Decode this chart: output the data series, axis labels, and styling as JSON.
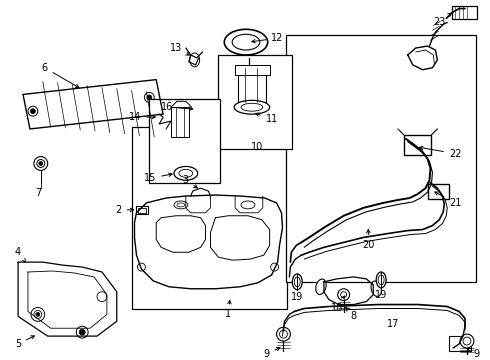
{
  "bg_color": "#ffffff",
  "fig_width": 4.9,
  "fig_height": 3.6,
  "dpi": 100,
  "font_size": 7.0
}
